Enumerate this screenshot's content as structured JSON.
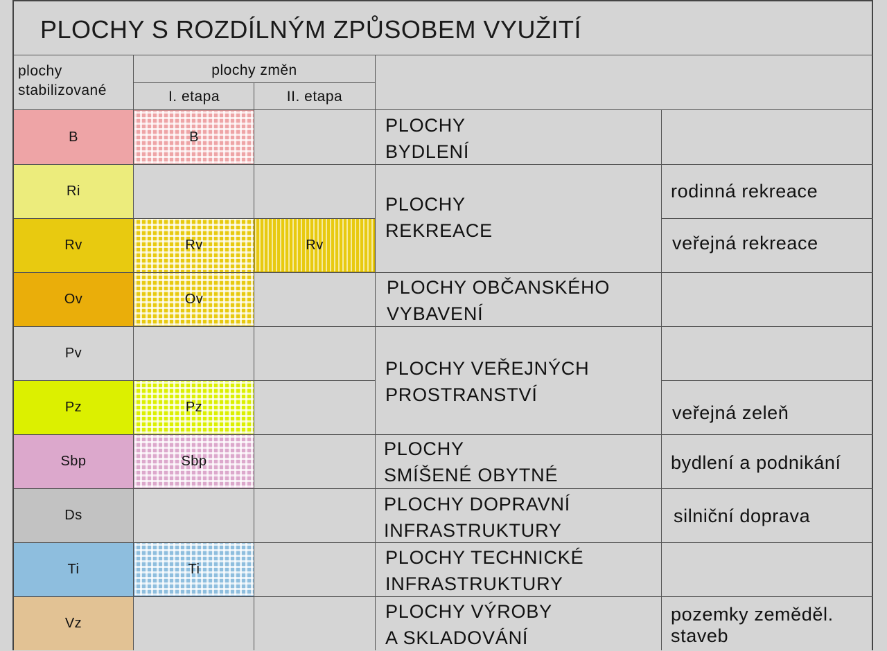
{
  "title": "PLOCHY S ROZDÍLNÝM ZPŮSOBEM VYUŽITÍ",
  "headers": {
    "stabilized_line1": "plochy",
    "stabilized_line2": "stabilizované",
    "changes": "plochy změn",
    "stage1": "I. etapa",
    "stage2": "II. etapa"
  },
  "colors": {
    "B": "#eea4a6",
    "Ri": "#ecec7c",
    "Rv": "#e8ca10",
    "Ov": "#eaae0a",
    "Pz": "#dcf000",
    "Sbp": "#dca8cc",
    "Ds": "#c2c2c2",
    "Ti": "#8ebede",
    "Vz": "#e2c294"
  },
  "rows": [
    {
      "code": "B",
      "stage1": "B",
      "stage2": ""
    },
    {
      "code": "Ri",
      "stage1": "",
      "stage2": ""
    },
    {
      "code": "Rv",
      "stage1": "Rv",
      "stage2": "Rv"
    },
    {
      "code": "Ov",
      "stage1": "Ov",
      "stage2": ""
    },
    {
      "code": "Pv",
      "stage1": "",
      "stage2": ""
    },
    {
      "code": "Pz",
      "stage1": "Pz",
      "stage2": ""
    },
    {
      "code": "Sbp",
      "stage1": "Sbp",
      "stage2": ""
    },
    {
      "code": "Ds",
      "stage1": "",
      "stage2": ""
    },
    {
      "code": "Ti",
      "stage1": "Ti",
      "stage2": ""
    },
    {
      "code": "Vz",
      "stage1": "",
      "stage2": ""
    }
  ],
  "categories": [
    {
      "line1": "PLOCHY",
      "line2": "BYDLENÍ"
    },
    {
      "line1": "PLOCHY",
      "line2": "REKREACE"
    },
    {
      "line1": "PLOCHY OBČANSKÉHO",
      "line2": "VYBAVENÍ"
    },
    {
      "line1": "PLOCHY VEŘEJNÝCH",
      "line2": "PROSTRANSTVÍ"
    },
    {
      "line1": "PLOCHY",
      "line2": "SMÍŠENÉ OBYTNÉ"
    },
    {
      "line1": "PLOCHY DOPRAVNÍ",
      "line2": "INFRASTRUKTURY"
    },
    {
      "line1": "PLOCHY TECHNICKÉ",
      "line2": "INFRASTRUKTURY"
    },
    {
      "line1": "PLOCHY VÝROBY",
      "line2": "A SKLADOVÁNÍ"
    }
  ],
  "subtypes": {
    "ri": "rodinná rekreace",
    "rv": "veřejná rekreace",
    "pz": "veřejná zeleň",
    "sbp": "bydlení a podnikání",
    "ds": "silniční doprava",
    "vz_line1": "pozemky zeměděl.",
    "vz_line2": "staveb"
  }
}
